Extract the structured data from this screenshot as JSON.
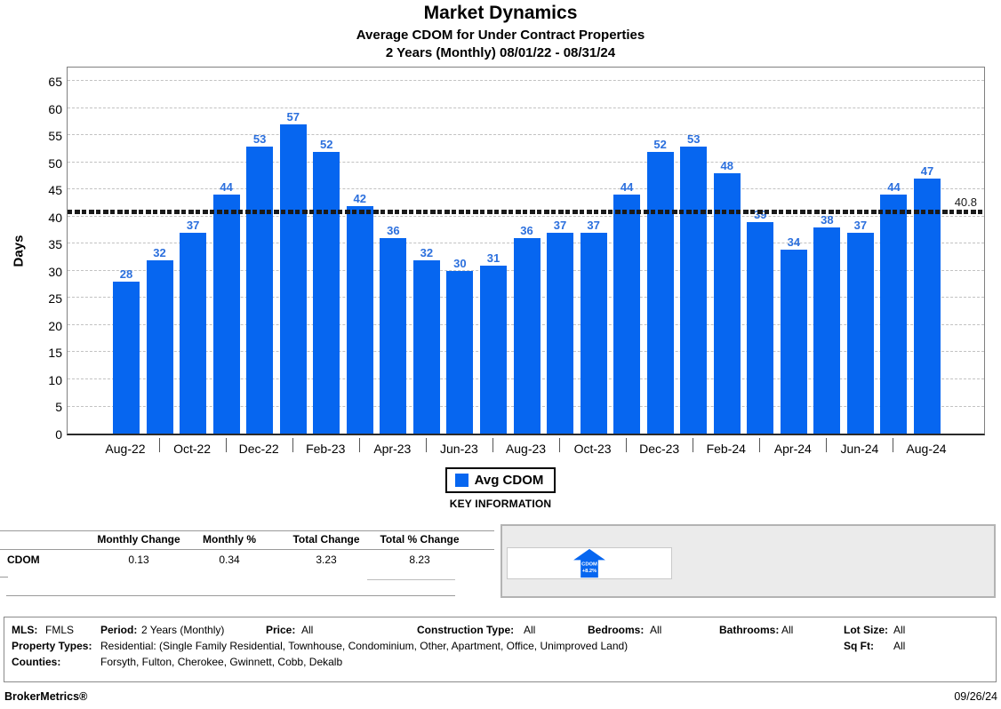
{
  "header": {
    "title": "Market Dynamics",
    "subtitle1": "Average CDOM for Under Contract Properties",
    "subtitle2": "2 Years (Monthly) 08/01/22 - 08/31/24"
  },
  "chart_data": {
    "type": "bar",
    "title": "Market Dynamics",
    "subtitle": "Average CDOM for Under Contract Properties — 2 Years (Monthly) 08/01/22 - 08/31/24",
    "ylabel": "Days",
    "xlabel": "",
    "ylim": [
      0,
      68
    ],
    "yticks": [
      0,
      5,
      10,
      15,
      20,
      25,
      30,
      35,
      40,
      45,
      50,
      55,
      60,
      65
    ],
    "grid": true,
    "categories": [
      "Aug-22",
      "Sep-22",
      "Oct-22",
      "Nov-22",
      "Dec-22",
      "Jan-23",
      "Feb-23",
      "Mar-23",
      "Apr-23",
      "May-23",
      "Jun-23",
      "Jul-23",
      "Aug-23",
      "Sep-23",
      "Oct-23",
      "Nov-23",
      "Dec-23",
      "Jan-24",
      "Feb-24",
      "Mar-24",
      "Apr-24",
      "May-24",
      "Jun-24",
      "Jul-24",
      "Aug-24"
    ],
    "values": [
      28,
      32,
      37,
      44,
      53,
      57,
      52,
      42,
      36,
      32,
      30,
      31,
      36,
      37,
      37,
      44,
      52,
      53,
      48,
      39,
      34,
      38,
      37,
      44,
      47
    ],
    "x_tick_labels": [
      "Aug-22",
      "Oct-22",
      "Dec-22",
      "Feb-23",
      "Apr-23",
      "Jun-23",
      "Aug-23",
      "Oct-23",
      "Dec-23",
      "Feb-24",
      "Apr-24",
      "Jun-24",
      "Aug-24"
    ],
    "average_line": {
      "value": 40.8,
      "label": "40.8",
      "style": "dotted-black"
    },
    "bar_color": "#0666f0",
    "value_label_color": "#2b6fdd",
    "legend": [
      {
        "label": "Avg CDOM",
        "color": "#0666f0",
        "position": "bottom-center"
      }
    ]
  },
  "key_information": {
    "heading": "KEY INFORMATION",
    "table": {
      "columns": [
        "",
        "Monthly Change",
        "Monthly %",
        "Total Change",
        "Total % Change"
      ],
      "rows": [
        {
          "label": "CDOM",
          "values": [
            "0.13",
            "0.34",
            "3.23",
            "8.23"
          ]
        }
      ]
    },
    "indicator": {
      "icon": "cdom-up-arrow-icon",
      "line1": "CDOM",
      "line2": "+8.2%",
      "color": "#0666f0"
    }
  },
  "criteria": {
    "mls_label": "MLS:",
    "mls": "FMLS",
    "period_label": "Period:",
    "period": "2 Years (Monthly)",
    "price_label": "Price:",
    "price": "All",
    "construction_label": "Construction Type:",
    "construction": "All",
    "bedrooms_label": "Bedrooms:",
    "bedrooms": "All",
    "bathrooms_label": "Bathrooms:",
    "bathrooms": "All",
    "lot_size_label": "Lot Size:",
    "lot_size": "All",
    "sq_ft_label": "Sq Ft:",
    "sq_ft": "All",
    "property_types_label": "Property Types:",
    "property_types": "Residential: (Single Family Residential, Townhouse, Condominium, Other, Apartment, Office, Unimproved Land)",
    "counties_label": "Counties:",
    "counties": "Forsyth, Fulton, Cherokee, Gwinnett, Cobb, Dekalb"
  },
  "footer": {
    "brand": "BrokerMetrics®",
    "date": "09/26/24"
  }
}
